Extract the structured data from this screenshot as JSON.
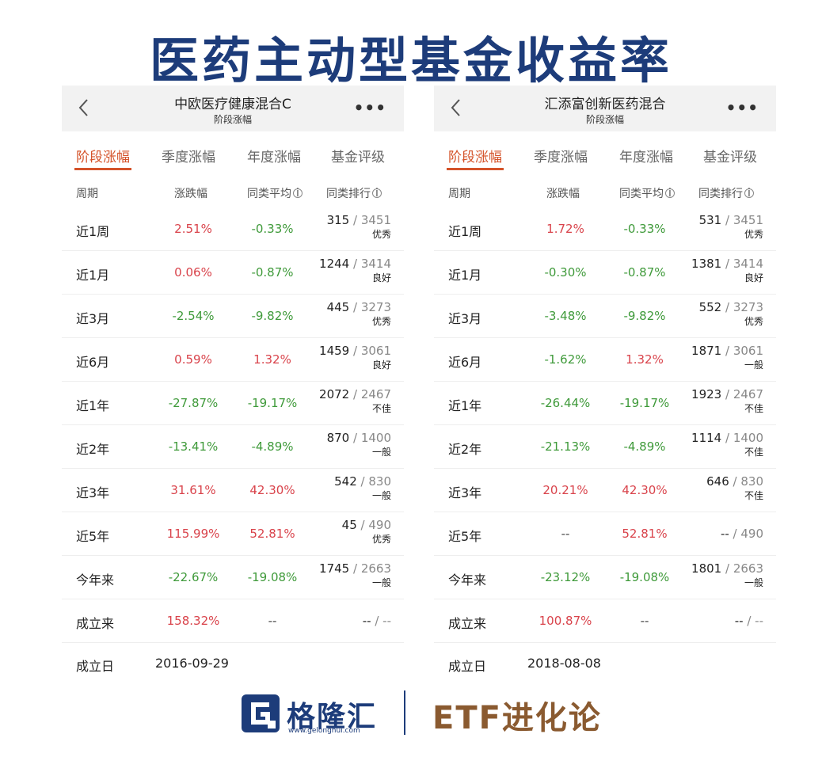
{
  "title": "医药主动型基金收益率",
  "panels": [
    {
      "fund_name": "中欧医疗健康混合C",
      "subtitle": "阶段涨幅",
      "more": "•••",
      "tabs": [
        "阶段涨幅",
        "季度涨幅",
        "年度涨幅",
        "基金评级"
      ],
      "columns": {
        "period": "周期",
        "change": "涨跌幅",
        "avg": "同类平均",
        "rank": "同类排行"
      },
      "rows": [
        {
          "period": "近1周",
          "change": "2.51%",
          "change_color": "red",
          "avg": "-0.33%",
          "avg_color": "green",
          "rank": "315",
          "total": "3451",
          "grade": "优秀"
        },
        {
          "period": "近1月",
          "change": "0.06%",
          "change_color": "red",
          "avg": "-0.87%",
          "avg_color": "green",
          "rank": "1244",
          "total": "3414",
          "grade": "良好"
        },
        {
          "period": "近3月",
          "change": "-2.54%",
          "change_color": "green",
          "avg": "-9.82%",
          "avg_color": "green",
          "rank": "445",
          "total": "3273",
          "grade": "优秀"
        },
        {
          "period": "近6月",
          "change": "0.59%",
          "change_color": "red",
          "avg": "1.32%",
          "avg_color": "red",
          "rank": "1459",
          "total": "3061",
          "grade": "良好"
        },
        {
          "period": "近1年",
          "change": "-27.87%",
          "change_color": "green",
          "avg": "-19.17%",
          "avg_color": "green",
          "rank": "2072",
          "total": "2467",
          "grade": "不佳"
        },
        {
          "period": "近2年",
          "change": "-13.41%",
          "change_color": "green",
          "avg": "-4.89%",
          "avg_color": "green",
          "rank": "870",
          "total": "1400",
          "grade": "一般"
        },
        {
          "period": "近3年",
          "change": "31.61%",
          "change_color": "red",
          "avg": "42.30%",
          "avg_color": "red",
          "rank": "542",
          "total": "830",
          "grade": "一般"
        },
        {
          "period": "近5年",
          "change": "115.99%",
          "change_color": "red",
          "avg": "52.81%",
          "avg_color": "red",
          "rank": "45",
          "total": "490",
          "grade": "优秀"
        },
        {
          "period": "今年来",
          "change": "-22.67%",
          "change_color": "green",
          "avg": "-19.08%",
          "avg_color": "green",
          "rank": "1745",
          "total": "2663",
          "grade": "一般"
        },
        {
          "period": "成立来",
          "change": "158.32%",
          "change_color": "red",
          "avg": "--",
          "avg_color": "dash",
          "rank": "--",
          "total": "--",
          "grade": ""
        }
      ],
      "found_label": "成立日",
      "found_date": "2016-09-29"
    },
    {
      "fund_name": "汇添富创新医药混合",
      "subtitle": "阶段涨幅",
      "more": "•••",
      "tabs": [
        "阶段涨幅",
        "季度涨幅",
        "年度涨幅",
        "基金评级"
      ],
      "columns": {
        "period": "周期",
        "change": "涨跌幅",
        "avg": "同类平均",
        "rank": "同类排行"
      },
      "rows": [
        {
          "period": "近1周",
          "change": "1.72%",
          "change_color": "red",
          "avg": "-0.33%",
          "avg_color": "green",
          "rank": "531",
          "total": "3451",
          "grade": "优秀"
        },
        {
          "period": "近1月",
          "change": "-0.30%",
          "change_color": "green",
          "avg": "-0.87%",
          "avg_color": "green",
          "rank": "1381",
          "total": "3414",
          "grade": "良好"
        },
        {
          "period": "近3月",
          "change": "-3.48%",
          "change_color": "green",
          "avg": "-9.82%",
          "avg_color": "green",
          "rank": "552",
          "total": "3273",
          "grade": "优秀"
        },
        {
          "period": "近6月",
          "change": "-1.62%",
          "change_color": "green",
          "avg": "1.32%",
          "avg_color": "red",
          "rank": "1871",
          "total": "3061",
          "grade": "一般"
        },
        {
          "period": "近1年",
          "change": "-26.44%",
          "change_color": "green",
          "avg": "-19.17%",
          "avg_color": "green",
          "rank": "1923",
          "total": "2467",
          "grade": "不佳"
        },
        {
          "period": "近2年",
          "change": "-21.13%",
          "change_color": "green",
          "avg": "-4.89%",
          "avg_color": "green",
          "rank": "1114",
          "total": "1400",
          "grade": "不佳"
        },
        {
          "period": "近3年",
          "change": "20.21%",
          "change_color": "red",
          "avg": "42.30%",
          "avg_color": "red",
          "rank": "646",
          "total": "830",
          "grade": "不佳"
        },
        {
          "period": "近5年",
          "change": "--",
          "change_color": "dash",
          "avg": "52.81%",
          "avg_color": "red",
          "rank": "--",
          "total": "490",
          "grade": ""
        },
        {
          "period": "今年来",
          "change": "-23.12%",
          "change_color": "green",
          "avg": "-19.08%",
          "avg_color": "green",
          "rank": "1801",
          "total": "2663",
          "grade": "一般"
        },
        {
          "period": "成立来",
          "change": "100.87%",
          "change_color": "red",
          "avg": "--",
          "avg_color": "dash",
          "rank": "--",
          "total": "--",
          "grade": ""
        }
      ],
      "found_label": "成立日",
      "found_date": "2018-08-08"
    }
  ],
  "footer": {
    "logo_text": "格隆汇",
    "logo_url": "www.gelonghui.com",
    "brand": "ETF进化论"
  },
  "colors": {
    "title": "#1d3c7a",
    "up": "#d9434b",
    "down": "#3f9a3a",
    "tab_active": "#d4532a",
    "brand": "#8a5a30"
  }
}
